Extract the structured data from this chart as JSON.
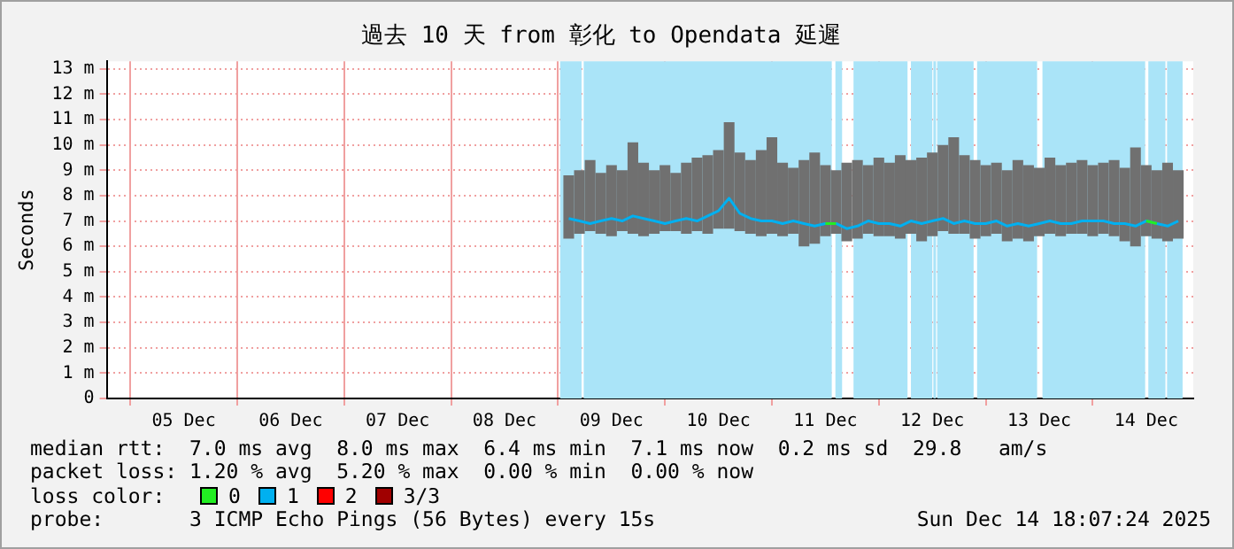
{
  "chart_data": {
    "type": "line",
    "title": "過去 10 天 from 彰化 to Opendata 延遲",
    "ylabel": "Seconds",
    "legend_title": "loss color:",
    "legend": "bottom",
    "grid": true,
    "marker": "none",
    "line_style": "solid",
    "x": [
      "2025-12-09T02:24",
      "2025-12-09T04:48",
      "2025-12-09T07:12",
      "2025-12-09T09:36",
      "2025-12-09T12:00",
      "2025-12-09T14:24",
      "2025-12-09T16:48",
      "2025-12-09T19:12",
      "2025-12-09T21:36",
      "2025-12-10T00:00",
      "2025-12-10T02:24",
      "2025-12-10T04:48",
      "2025-12-10T07:12",
      "2025-12-10T09:36",
      "2025-12-10T12:00",
      "2025-12-10T14:24",
      "2025-12-10T16:48",
      "2025-12-10T19:12",
      "2025-12-10T21:36",
      "2025-12-11T00:00",
      "2025-12-11T02:24",
      "2025-12-11T04:48",
      "2025-12-11T07:12",
      "2025-12-11T09:36",
      "2025-12-11T12:00",
      "2025-12-11T14:24",
      "2025-12-11T16:48",
      "2025-12-11T19:12",
      "2025-12-11T21:36",
      "2025-12-12T00:00",
      "2025-12-12T02:24",
      "2025-12-12T04:48",
      "2025-12-12T07:12",
      "2025-12-12T09:36",
      "2025-12-12T12:00",
      "2025-12-12T14:24",
      "2025-12-12T16:48",
      "2025-12-12T19:12",
      "2025-12-12T21:36",
      "2025-12-13T00:00",
      "2025-12-13T02:24",
      "2025-12-13T04:48",
      "2025-12-13T07:12",
      "2025-12-13T09:36",
      "2025-12-13T12:00",
      "2025-12-13T14:24",
      "2025-12-13T16:48",
      "2025-12-13T19:12",
      "2025-12-13T21:36",
      "2025-12-14T00:00",
      "2025-12-14T02:24",
      "2025-12-14T04:48",
      "2025-12-14T07:12",
      "2025-12-14T09:36",
      "2025-12-14T12:00",
      "2025-12-14T14:24",
      "2025-12-14T16:48",
      "2025-12-14T19:12"
    ],
    "xlim": [
      "2025-12-04T18:43",
      "2025-12-14T22:34"
    ],
    "xticks": [
      {
        "value": "2025-12-05T00:00",
        "label": null
      },
      {
        "value": "2025-12-05T12:00",
        "label": "05 Dec"
      },
      {
        "value": "2025-12-06T00:00",
        "label": null
      },
      {
        "value": "2025-12-06T12:00",
        "label": "06 Dec"
      },
      {
        "value": "2025-12-07T00:00",
        "label": null
      },
      {
        "value": "2025-12-07T12:00",
        "label": "07 Dec"
      },
      {
        "value": "2025-12-08T00:00",
        "label": null
      },
      {
        "value": "2025-12-08T12:00",
        "label": "08 Dec"
      },
      {
        "value": "2025-12-09T00:00",
        "label": null
      },
      {
        "value": "2025-12-09T12:00",
        "label": "09 Dec"
      },
      {
        "value": "2025-12-10T00:00",
        "label": null
      },
      {
        "value": "2025-12-10T12:00",
        "label": "10 Dec"
      },
      {
        "value": "2025-12-11T00:00",
        "label": null
      },
      {
        "value": "2025-12-11T12:00",
        "label": "11 Dec"
      },
      {
        "value": "2025-12-12T00:00",
        "label": null
      },
      {
        "value": "2025-12-12T12:00",
        "label": "12 Dec"
      },
      {
        "value": "2025-12-13T00:00",
        "label": null
      },
      {
        "value": "2025-12-13T12:00",
        "label": "13 Dec"
      },
      {
        "value": "2025-12-14T00:00",
        "label": null
      },
      {
        "value": "2025-12-14T12:00",
        "label": "14 Dec"
      }
    ],
    "ylim": [
      0,
      13.3
    ],
    "yticks": [
      {
        "value": 0,
        "label": "0"
      },
      {
        "value": 1,
        "label": "1 m"
      },
      {
        "value": 2,
        "label": "2 m"
      },
      {
        "value": 3,
        "label": "3 m"
      },
      {
        "value": 4,
        "label": "4 m"
      },
      {
        "value": 5,
        "label": "5 m"
      },
      {
        "value": 6,
        "label": "6 m"
      },
      {
        "value": 7,
        "label": "7 m"
      },
      {
        "value": 8,
        "label": "8 m"
      },
      {
        "value": 9,
        "label": "9 m"
      },
      {
        "value": 10,
        "label": "10 m"
      },
      {
        "value": 11,
        "label": "11 m"
      },
      {
        "value": 12,
        "label": "12 m"
      },
      {
        "value": 13,
        "label": "13 m"
      }
    ],
    "series": [
      {
        "name": "0",
        "color": "#22ee22",
        "values": [
          null,
          null,
          null,
          null,
          null,
          null,
          null,
          null,
          null,
          null,
          null,
          null,
          null,
          null,
          null,
          null,
          null,
          null,
          null,
          null,
          null,
          null,
          null,
          null,
          6.9,
          6.9,
          null,
          null,
          null,
          null,
          null,
          null,
          null,
          null,
          null,
          null,
          null,
          null,
          null,
          null,
          null,
          null,
          null,
          null,
          null,
          null,
          null,
          null,
          null,
          null,
          null,
          null,
          null,
          null,
          7.0,
          6.9,
          null,
          null
        ]
      },
      {
        "name": "1",
        "color": "#00b0f0",
        "values": [
          7.1,
          7.0,
          6.9,
          7.0,
          7.1,
          7.0,
          7.2,
          7.1,
          7.0,
          6.9,
          7.0,
          7.1,
          7.0,
          7.2,
          7.4,
          7.9,
          7.3,
          7.1,
          7.0,
          7.0,
          6.9,
          7.0,
          6.9,
          6.8,
          6.9,
          6.9,
          6.7,
          6.8,
          7.0,
          6.9,
          6.9,
          6.8,
          7.0,
          6.9,
          7.0,
          7.1,
          6.9,
          7.0,
          6.9,
          6.9,
          7.0,
          6.8,
          6.9,
          6.8,
          6.9,
          7.0,
          6.9,
          6.9,
          7.0,
          7.0,
          7.0,
          6.9,
          6.9,
          6.8,
          7.0,
          6.9,
          6.8,
          7.0
        ],
        "lower": [
          6.3,
          6.5,
          6.6,
          6.5,
          6.4,
          6.6,
          6.5,
          6.4,
          6.5,
          6.6,
          6.6,
          6.5,
          6.6,
          6.5,
          6.7,
          6.7,
          6.6,
          6.5,
          6.4,
          6.5,
          6.4,
          6.5,
          6.0,
          6.1,
          6.4,
          6.5,
          6.2,
          6.3,
          6.5,
          6.4,
          6.4,
          6.3,
          6.5,
          6.2,
          6.4,
          6.6,
          6.5,
          6.5,
          6.3,
          6.4,
          6.5,
          6.2,
          6.3,
          6.2,
          6.4,
          6.5,
          6.4,
          6.5,
          6.5,
          6.4,
          6.5,
          6.4,
          6.2,
          6.0,
          6.4,
          6.3,
          6.2,
          6.3
        ],
        "upper": [
          8.8,
          9.0,
          9.4,
          8.9,
          9.2,
          9.0,
          10.1,
          9.3,
          9.0,
          9.2,
          8.9,
          9.3,
          9.5,
          9.6,
          9.8,
          10.9,
          9.7,
          9.4,
          9.8,
          10.3,
          9.3,
          9.1,
          9.4,
          9.7,
          9.2,
          9.0,
          9.3,
          9.4,
          9.2,
          9.5,
          9.3,
          9.6,
          9.4,
          9.5,
          9.7,
          10.0,
          10.3,
          9.6,
          9.4,
          9.2,
          9.3,
          9.0,
          9.4,
          9.2,
          9.1,
          9.5,
          9.2,
          9.3,
          9.4,
          9.2,
          9.3,
          9.4,
          9.1,
          9.9,
          9.2,
          9.0,
          9.3,
          9.0
        ]
      },
      {
        "name": "2",
        "color": "#ff0000",
        "values": [
          null,
          null,
          null,
          null,
          null,
          null,
          null,
          null,
          null,
          null,
          null,
          null,
          null,
          null,
          null,
          null,
          null,
          null,
          null,
          null,
          null,
          null,
          null,
          null,
          null,
          null,
          null,
          null,
          null,
          null,
          null,
          null,
          null,
          null,
          null,
          null,
          null,
          null,
          null,
          null,
          null,
          null,
          null,
          null,
          null,
          null,
          null,
          null,
          null,
          null,
          null,
          null,
          null,
          null,
          null,
          null,
          null,
          null
        ]
      },
      {
        "name": "3/3",
        "color": "#a00000",
        "values": [
          null,
          null,
          null,
          null,
          null,
          null,
          null,
          null,
          null,
          null,
          null,
          null,
          null,
          null,
          null,
          null,
          null,
          null,
          null,
          null,
          null,
          null,
          null,
          null,
          null,
          null,
          null,
          null,
          null,
          null,
          null,
          null,
          null,
          null,
          null,
          null,
          null,
          null,
          null,
          null,
          null,
          null,
          null,
          null,
          null,
          null,
          null,
          null,
          null,
          null,
          null,
          null,
          null,
          null,
          null,
          null,
          null,
          null
        ]
      }
    ],
    "bands": [
      {
        "axis": "x",
        "from": "2025-12-09T00:29",
        "to": "2025-12-09T05:17",
        "color": "#aae4f8"
      },
      {
        "axis": "x",
        "from": "2025-12-09T05:46",
        "to": "2025-12-11T13:26",
        "color": "#aae4f8"
      },
      {
        "axis": "x",
        "from": "2025-12-11T14:15",
        "to": "2025-12-11T15:45",
        "color": "#aae4f8"
      },
      {
        "axis": "x",
        "from": "2025-12-11T18:19",
        "to": "2025-12-12T06:26",
        "color": "#aae4f8"
      },
      {
        "axis": "x",
        "from": "2025-12-12T07:12",
        "to": "2025-12-12T12:00",
        "color": "#aae4f8"
      },
      {
        "axis": "x",
        "from": "2025-12-12T12:14",
        "to": "2025-12-12T12:50",
        "color": "#aae4f8"
      },
      {
        "axis": "x",
        "from": "2025-12-12T13:05",
        "to": "2025-12-12T21:16",
        "color": "#aae4f8"
      },
      {
        "axis": "x",
        "from": "2025-12-12T22:03",
        "to": "2025-12-13T11:31",
        "color": "#aae4f8"
      },
      {
        "axis": "x",
        "from": "2025-12-13T12:43",
        "to": "2025-12-14T11:46",
        "color": "#aae4f8"
      },
      {
        "axis": "x",
        "from": "2025-12-14T12:29",
        "to": "2025-12-14T16:19",
        "color": "#aae4f8"
      },
      {
        "axis": "x",
        "from": "2025-12-14T16:41",
        "to": "2025-12-14T20:10",
        "color": "#aae4f8"
      }
    ],
    "annotations": [
      "median rtt:  7.0 ms avg  8.0 ms max  6.4 ms min  7.1 ms now  0.2 ms sd  29.8   am/s",
      "packet loss: 1.20 % avg  5.20 % max  0.00 % min  0.00 % now",
      "probe:       3 ICMP Echo Pings (56 Bytes) every 15s",
      "Sun Dec 14 18:07:24 2025"
    ]
  }
}
